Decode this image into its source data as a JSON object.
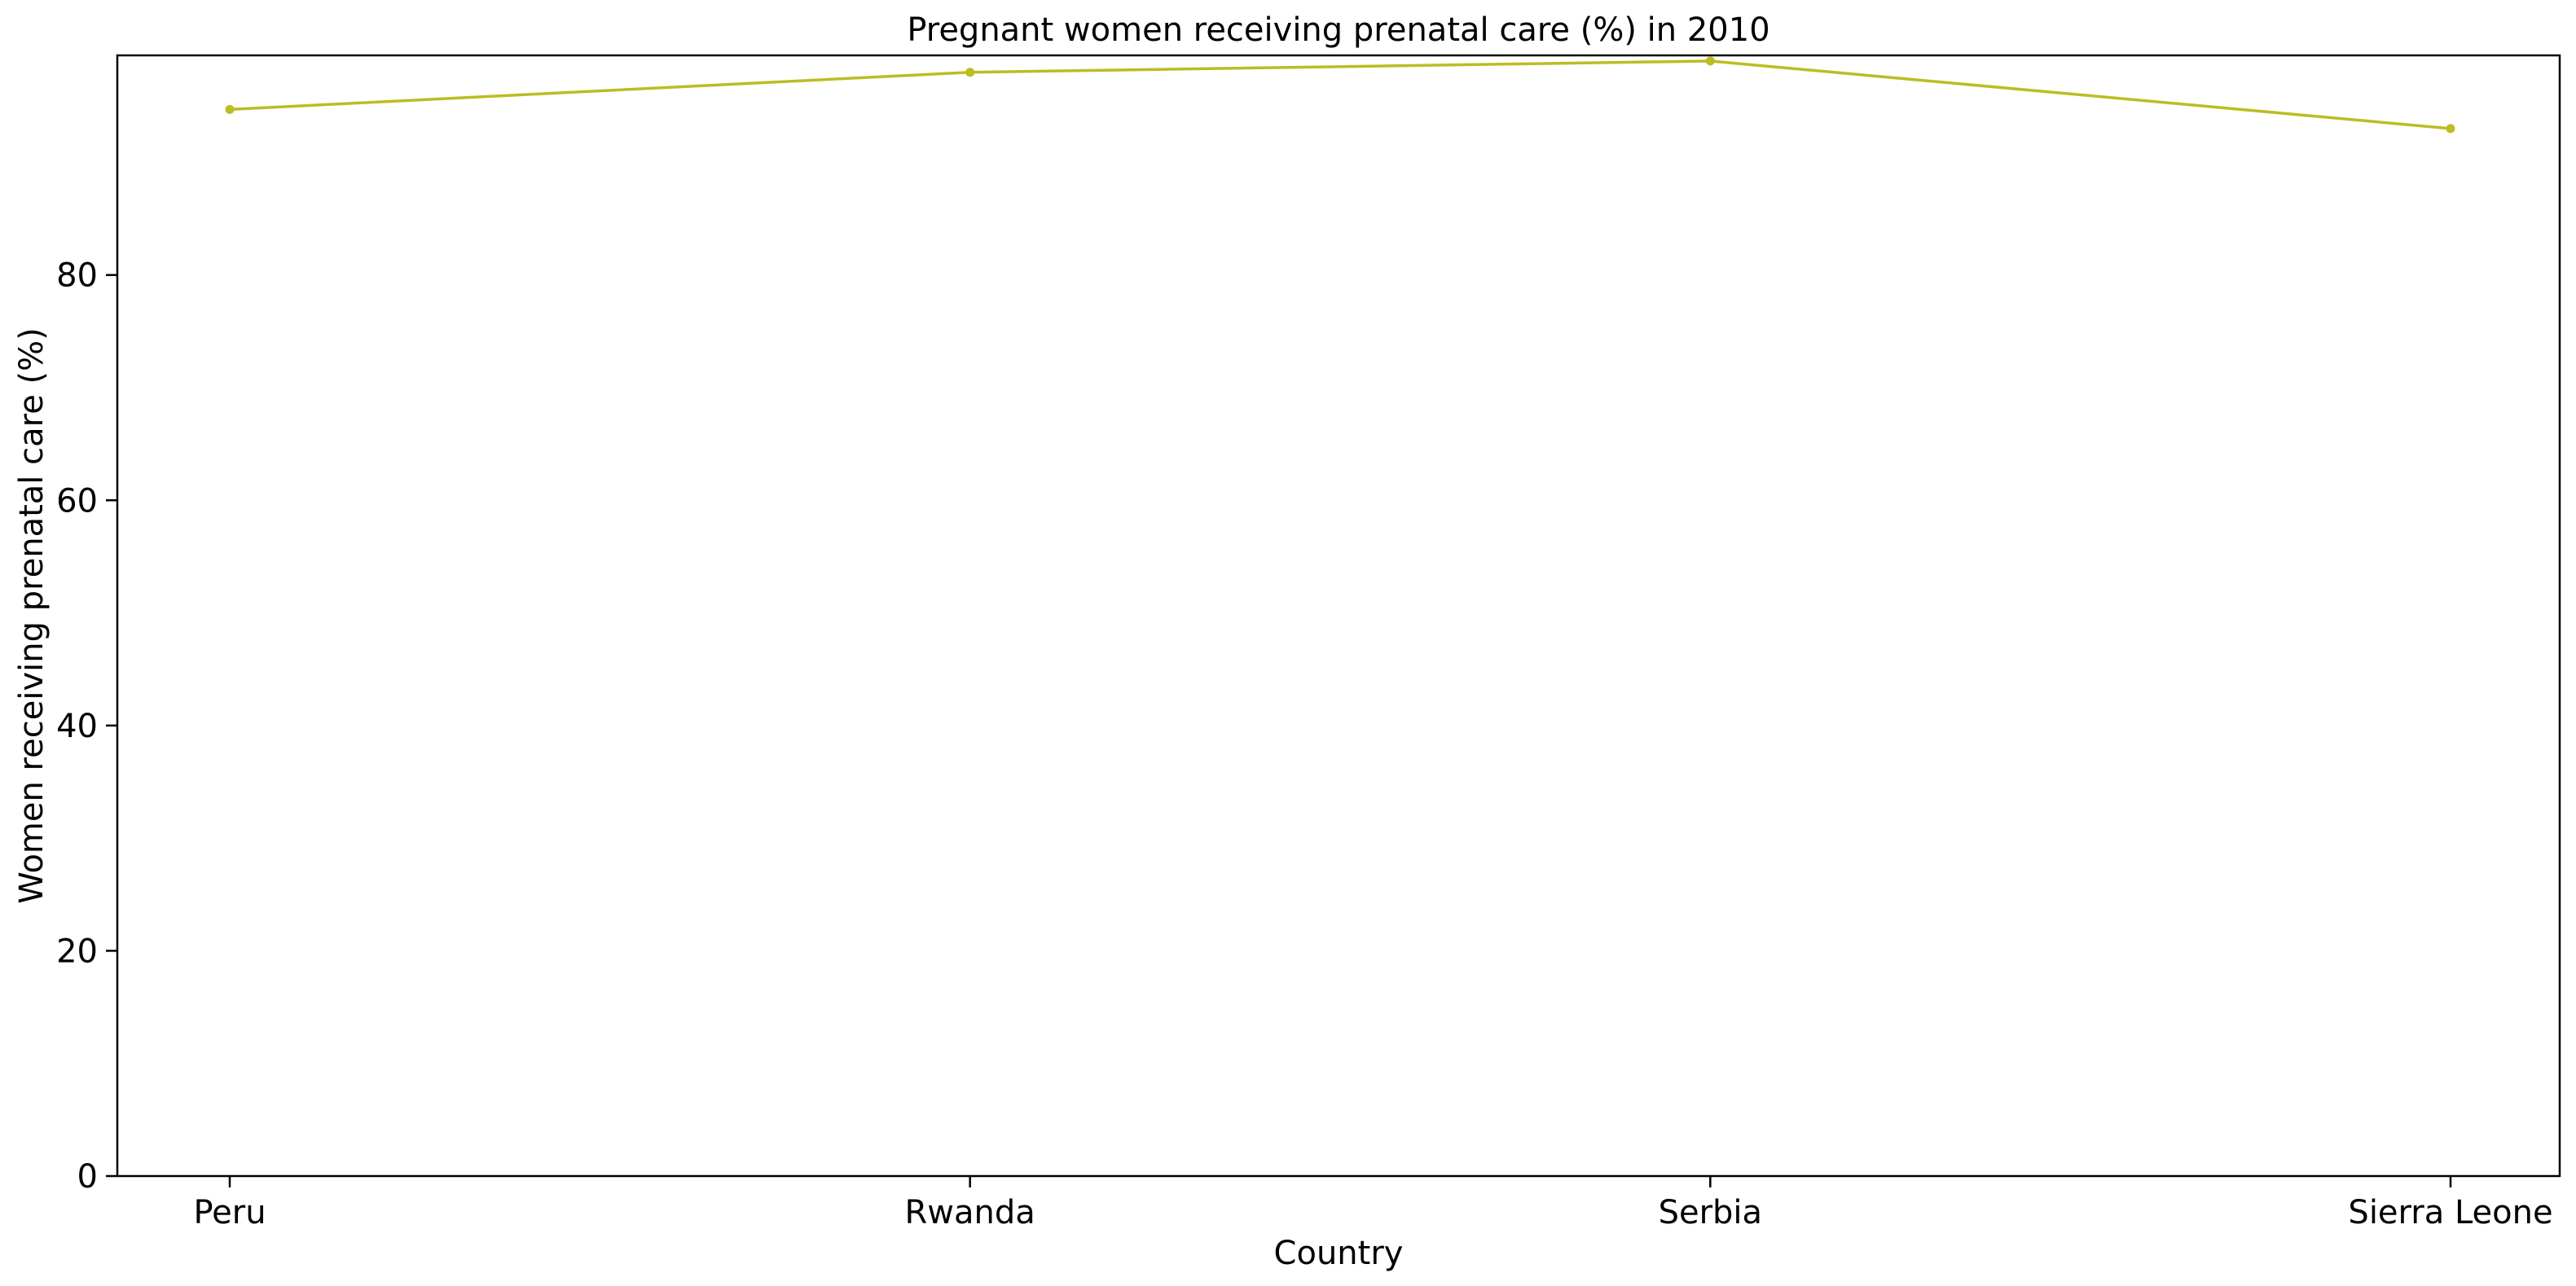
{
  "chart_data": {
    "type": "line",
    "title": "Pregnant women receiving prenatal care (%) in 2010",
    "xlabel": "Country",
    "ylabel": "Women receiving prenatal care (%)",
    "categories": [
      "Peru",
      "Rwanda",
      "Serbia",
      "Sierra Leone"
    ],
    "series": [
      {
        "values": [
          94.7,
          98.0,
          99.0,
          93.0
        ],
        "color": "#bcbd22"
      }
    ],
    "ylim": [
      0,
      99.5
    ],
    "yticks": [
      0,
      20,
      40,
      60,
      80
    ],
    "grid": false,
    "legend": "none"
  }
}
